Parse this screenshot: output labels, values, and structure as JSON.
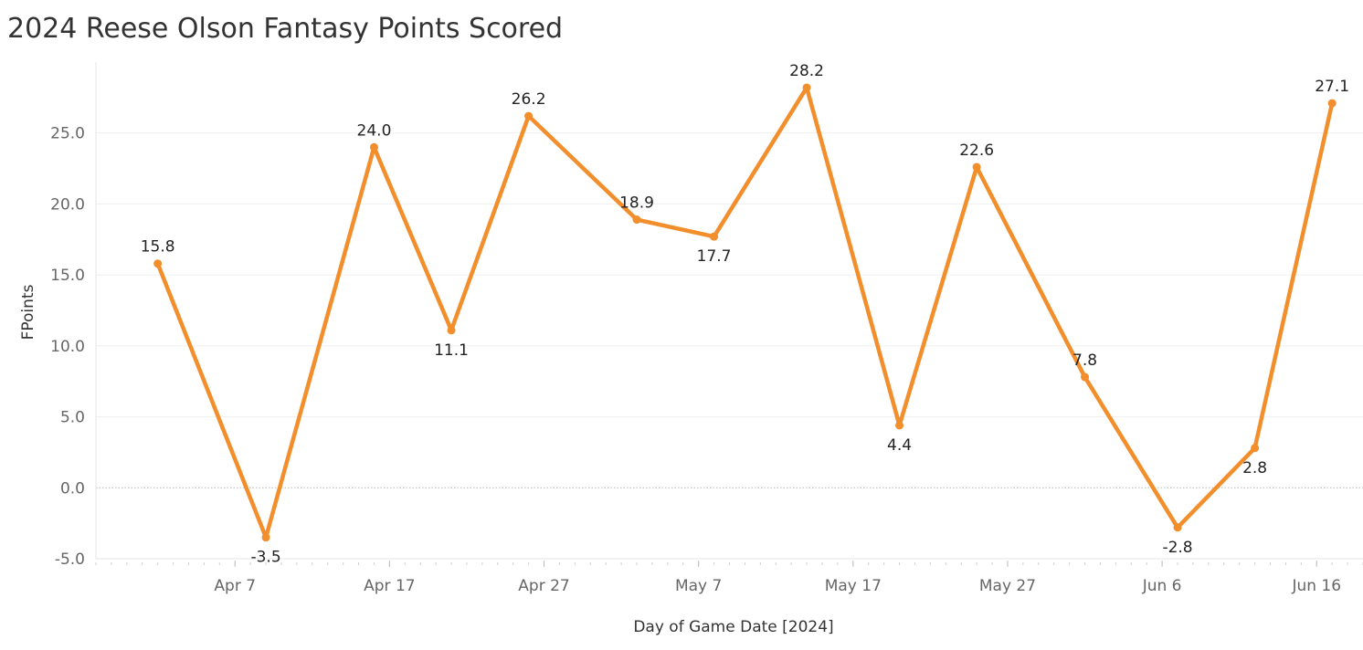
{
  "chart_data": {
    "type": "line",
    "title": "2024 Reese Olson Fantasy Points Scored",
    "xlabel": "Day of Game Date [2024]",
    "ylabel": "FPoints",
    "x_dates": [
      "2024-04-02",
      "2024-04-09",
      "2024-04-16",
      "2024-04-21",
      "2024-04-26",
      "2024-05-03",
      "2024-05-08",
      "2024-05-14",
      "2024-05-20",
      "2024-05-25",
      "2024-06-01",
      "2024-06-07",
      "2024-06-12",
      "2024-06-17"
    ],
    "values": [
      15.8,
      -3.5,
      24.0,
      11.1,
      26.2,
      18.9,
      17.7,
      28.2,
      4.4,
      22.6,
      7.8,
      -2.8,
      2.8,
      27.1
    ],
    "value_labels": [
      "15.8",
      "-3.5",
      "24.0",
      "11.1",
      "26.2",
      "18.9",
      "17.7",
      "28.2",
      "4.4",
      "22.6",
      "7.8",
      "-2.8",
      "2.8",
      "27.1"
    ],
    "x_tick_labels": [
      "Apr 7",
      "Apr 17",
      "Apr 27",
      "May 7",
      "May 17",
      "May 27",
      "Jun 6",
      "Jun 16"
    ],
    "x_tick_dates": [
      "2024-04-07",
      "2024-04-17",
      "2024-04-27",
      "2024-05-07",
      "2024-05-17",
      "2024-05-27",
      "2024-06-06",
      "2024-06-16"
    ],
    "y_ticks": [
      -5.0,
      0.0,
      5.0,
      10.0,
      15.0,
      20.0,
      25.0
    ],
    "y_tick_labels": [
      "-5.0",
      "0.0",
      "5.0",
      "10.0",
      "15.0",
      "20.0",
      "25.0"
    ],
    "xlim": [
      "2024-03-29",
      "2024-06-19"
    ],
    "ylim": [
      -5.0,
      30.0
    ],
    "grid": true,
    "line_color": "#f28e2b"
  }
}
